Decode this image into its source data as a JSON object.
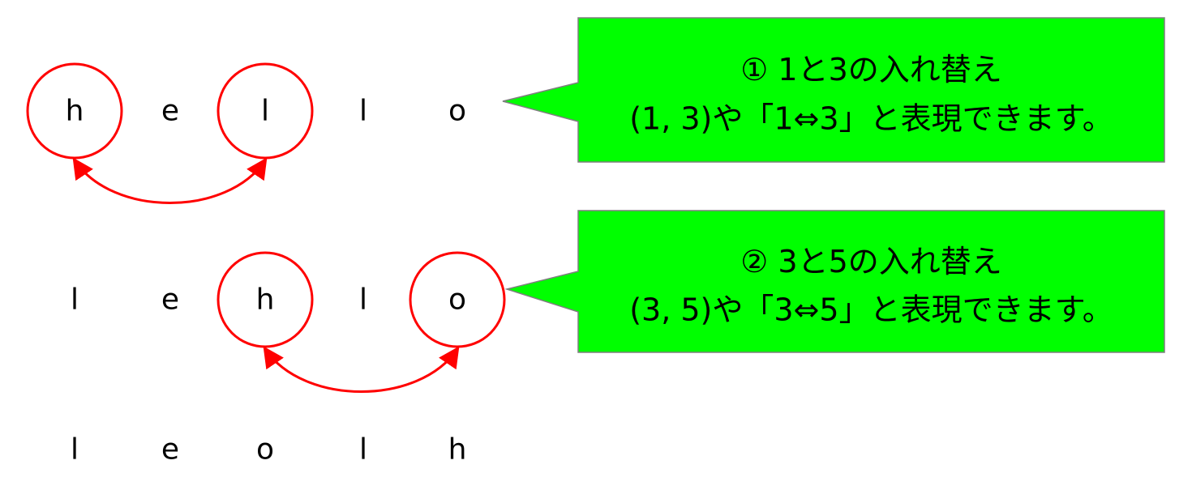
{
  "colors": {
    "highlight": "#ff0000",
    "callout_fill": "#00ff00",
    "callout_border": "#7f7f7f",
    "text": "#000000"
  },
  "rows": [
    {
      "letters": [
        "h",
        "e",
        "l",
        "l",
        "o"
      ],
      "swap": [
        1,
        3
      ]
    },
    {
      "letters": [
        "l",
        "e",
        "h",
        "l",
        "o"
      ],
      "swap": [
        3,
        5
      ]
    },
    {
      "letters": [
        "l",
        "e",
        "o",
        "l",
        "h"
      ],
      "swap": null
    }
  ],
  "callouts": [
    {
      "line1": "① 1と3の入れ替え",
      "line2": "(1, 3)や「1⇔3」と表現できます。"
    },
    {
      "line1": "② 3と5の入れ替え",
      "line2": "(3, 5)や「3⇔5」と表現できます。"
    }
  ]
}
